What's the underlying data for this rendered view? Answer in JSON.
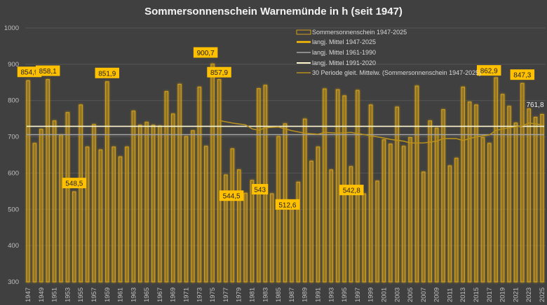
{
  "chart_data": {
    "type": "bar",
    "title": "Sommersonnenschein Warnemünde in h (seit 1947)",
    "xlabel": "",
    "ylabel": "",
    "ylim": [
      300,
      1000
    ],
    "yticks": [
      300,
      400,
      500,
      600,
      700,
      800,
      900,
      1000
    ],
    "grid": true,
    "legend_position": "top-right",
    "colors": {
      "bar": "#d4a017",
      "mean_all": "#ffc000",
      "mean_6190": "#a6a6a6",
      "mean_9120": "#fff7d0",
      "moving": "#b8901c",
      "label_bg": "#ffc000",
      "background": "#404040"
    },
    "categories": [
      1947,
      1948,
      1949,
      1950,
      1951,
      1952,
      1953,
      1954,
      1955,
      1956,
      1957,
      1958,
      1959,
      1960,
      1961,
      1962,
      1963,
      1964,
      1965,
      1966,
      1967,
      1968,
      1969,
      1970,
      1971,
      1972,
      1973,
      1974,
      1975,
      1976,
      1977,
      1978,
      1979,
      1980,
      1981,
      1982,
      1983,
      1984,
      1985,
      1986,
      1987,
      1988,
      1989,
      1990,
      1991,
      1992,
      1993,
      1994,
      1995,
      1996,
      1997,
      1998,
      1999,
      2000,
      2001,
      2002,
      2003,
      2004,
      2005,
      2006,
      2007,
      2008,
      2009,
      2010,
      2011,
      2012,
      2013,
      2014,
      2015,
      2016,
      2017,
      2018,
      2019,
      2020,
      2021,
      2022,
      2023,
      2024,
      2025
    ],
    "series": [
      {
        "name": "Sommersonnenschein 1947-2025",
        "type": "bar",
        "values": [
          854.9,
          682,
          721,
          858.1,
          744,
          705,
          767,
          548.5,
          788,
          672,
          734,
          664,
          851.9,
          672,
          645,
          672,
          771,
          732,
          740,
          732,
          730,
          825,
          763,
          845,
          701,
          717,
          837,
          674,
          900.7,
          857.9,
          595,
          667,
          609,
          544.5,
          580,
          833,
          842,
          543,
          701,
          736,
          512.6,
          575,
          749,
          633,
          672,
          832,
          609,
          830,
          813,
          618,
          828,
          542.8,
          788,
          578,
          692,
          680,
          782,
          674,
          698,
          840,
          603,
          744,
          724,
          775,
          620,
          641,
          837,
          796,
          788,
          698,
          682,
          862.9,
          817,
          784,
          738,
          847.3,
          777,
          754,
          761.8
        ]
      },
      {
        "name": "langj. Mittel 1947-2025",
        "type": "line",
        "value": 725
      },
      {
        "name": "langj. Mittel 1961-1990",
        "type": "line",
        "value": 706
      },
      {
        "name": "langj. Mittel 1991-2020",
        "type": "line",
        "value": 727
      },
      {
        "name": "30 Periode gleit. Mittelw. (Sommersonnenschein 1947-2025)",
        "type": "line",
        "x": [
          1976,
          1978,
          1980,
          1981,
          1982,
          1983,
          1985,
          1987,
          1989,
          1991,
          1992,
          1994,
          1996,
          1998,
          2000,
          2002,
          2004,
          2005,
          2007,
          2009,
          2010,
          2012,
          2013,
          2015,
          2017,
          2018,
          2020,
          2022,
          2023,
          2025
        ],
        "values": [
          745,
          738,
          733,
          722,
          718,
          725,
          727,
          717,
          710,
          707,
          712,
          710,
          712,
          706,
          700,
          693,
          688,
          683,
          683,
          688,
          695,
          695,
          690,
          700,
          705,
          718,
          725,
          730,
          738,
          733
        ]
      }
    ],
    "data_labels": [
      {
        "year": 1947,
        "text": "854,9"
      },
      {
        "year": 1950,
        "text": "858,1"
      },
      {
        "year": 1954,
        "text": "548,5"
      },
      {
        "year": 1959,
        "text": "851,9"
      },
      {
        "year": 1975,
        "text": "900,7"
      },
      {
        "year": 1976,
        "text": "857,9"
      },
      {
        "year": 1980,
        "text": "544,5"
      },
      {
        "year": 1984,
        "text": "543"
      },
      {
        "year": 1987,
        "text": "512,6"
      },
      {
        "year": 1998,
        "text": "542,8"
      },
      {
        "year": 2018,
        "text": "862,9"
      },
      {
        "year": 2022,
        "text": "847,3"
      },
      {
        "year": 2025,
        "text": "761,8",
        "plain": true
      }
    ]
  }
}
